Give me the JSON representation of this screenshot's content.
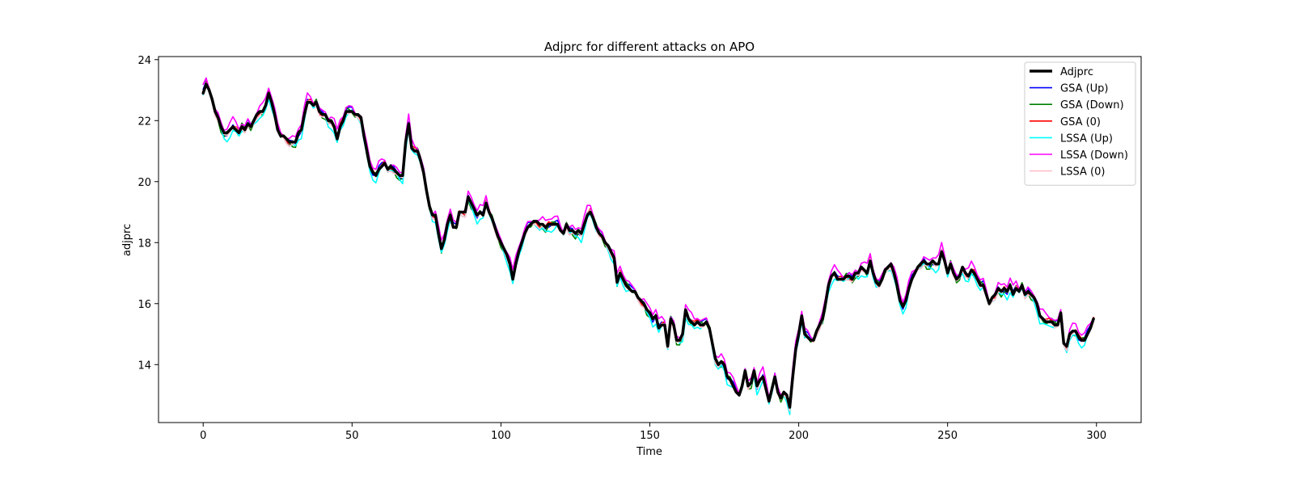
{
  "chart_data": {
    "type": "line",
    "title": "Adjprc for different attacks on APO",
    "xlabel": "Time",
    "ylabel": "adjprc",
    "xlim": [
      -15,
      315
    ],
    "ylim": [
      12.1,
      24.1
    ],
    "xticks": [
      0,
      50,
      100,
      150,
      200,
      250,
      300
    ],
    "yticks": [
      14,
      16,
      18,
      20,
      22,
      24
    ],
    "grid": false,
    "legend_position": "top-right",
    "anchors": [
      [
        0,
        22.9
      ],
      [
        1,
        23.2
      ],
      [
        2,
        23.0
      ],
      [
        3,
        22.7
      ],
      [
        4,
        22.3
      ],
      [
        5,
        22.1
      ],
      [
        6,
        21.8
      ],
      [
        7,
        21.6
      ],
      [
        8,
        21.6
      ],
      [
        9,
        21.7
      ],
      [
        10,
        21.8
      ],
      [
        11,
        21.7
      ],
      [
        12,
        21.6
      ],
      [
        13,
        21.8
      ],
      [
        14,
        21.7
      ],
      [
        15,
        21.9
      ],
      [
        16,
        21.8
      ],
      [
        17,
        22.0
      ],
      [
        18,
        22.2
      ],
      [
        19,
        22.3
      ],
      [
        20,
        22.3
      ],
      [
        21,
        22.5
      ],
      [
        22,
        22.9
      ],
      [
        23,
        22.6
      ],
      [
        24,
        22.2
      ],
      [
        25,
        21.7
      ],
      [
        26,
        21.5
      ],
      [
        27,
        21.5
      ],
      [
        28,
        21.4
      ],
      [
        29,
        21.3
      ],
      [
        30,
        21.3
      ],
      [
        31,
        21.3
      ],
      [
        32,
        21.6
      ],
      [
        33,
        21.7
      ],
      [
        34,
        22.2
      ],
      [
        35,
        22.6
      ],
      [
        36,
        22.6
      ],
      [
        37,
        22.5
      ],
      [
        38,
        22.6
      ],
      [
        39,
        22.3
      ],
      [
        40,
        22.2
      ],
      [
        41,
        22.2
      ],
      [
        42,
        22.0
      ],
      [
        43,
        22.0
      ],
      [
        44,
        21.8
      ],
      [
        45,
        21.4
      ],
      [
        46,
        21.8
      ],
      [
        47,
        22.0
      ],
      [
        48,
        22.3
      ],
      [
        49,
        22.3
      ],
      [
        50,
        22.3
      ],
      [
        51,
        22.2
      ],
      [
        52,
        22.2
      ],
      [
        53,
        22.1
      ],
      [
        54,
        21.5
      ],
      [
        55,
        21.0
      ],
      [
        56,
        20.5
      ],
      [
        57,
        20.3
      ],
      [
        58,
        20.2
      ],
      [
        59,
        20.4
      ],
      [
        60,
        20.5
      ],
      [
        61,
        20.6
      ],
      [
        62,
        20.4
      ],
      [
        63,
        20.5
      ],
      [
        64,
        20.4
      ],
      [
        65,
        20.3
      ],
      [
        66,
        20.2
      ],
      [
        67,
        20.2
      ],
      [
        68,
        21.3
      ],
      [
        69,
        21.9
      ],
      [
        70,
        21.1
      ],
      [
        71,
        21.0
      ],
      [
        72,
        21.0
      ],
      [
        73,
        20.7
      ],
      [
        74,
        20.3
      ],
      [
        75,
        19.7
      ],
      [
        76,
        19.2
      ],
      [
        77,
        18.9
      ],
      [
        78,
        18.9
      ],
      [
        79,
        18.3
      ],
      [
        80,
        17.8
      ],
      [
        81,
        18.1
      ],
      [
        82,
        18.6
      ],
      [
        83,
        18.9
      ],
      [
        84,
        18.5
      ],
      [
        85,
        18.5
      ],
      [
        86,
        19.0
      ],
      [
        87,
        19.0
      ],
      [
        88,
        19.0
      ],
      [
        89,
        19.5
      ],
      [
        90,
        19.3
      ],
      [
        91,
        19.1
      ],
      [
        92,
        18.9
      ],
      [
        93,
        19.0
      ],
      [
        94,
        18.9
      ],
      [
        95,
        19.3
      ],
      [
        96,
        19.0
      ],
      [
        97,
        18.8
      ],
      [
        98,
        18.5
      ],
      [
        99,
        18.2
      ],
      [
        100,
        18.0
      ],
      [
        101,
        17.8
      ],
      [
        102,
        17.6
      ],
      [
        103,
        17.3
      ],
      [
        104,
        16.8
      ],
      [
        105,
        17.3
      ],
      [
        106,
        17.7
      ],
      [
        107,
        18.0
      ],
      [
        108,
        18.3
      ],
      [
        109,
        18.5
      ],
      [
        110,
        18.6
      ],
      [
        111,
        18.7
      ],
      [
        112,
        18.7
      ],
      [
        113,
        18.6
      ],
      [
        114,
        18.6
      ],
      [
        115,
        18.5
      ],
      [
        116,
        18.6
      ],
      [
        117,
        18.6
      ],
      [
        118,
        18.6
      ],
      [
        119,
        18.6
      ],
      [
        120,
        18.4
      ],
      [
        121,
        18.3
      ],
      [
        122,
        18.6
      ],
      [
        123,
        18.4
      ],
      [
        124,
        18.4
      ],
      [
        125,
        18.3
      ],
      [
        126,
        18.4
      ],
      [
        127,
        18.3
      ],
      [
        128,
        18.6
      ],
      [
        129,
        18.9
      ],
      [
        130,
        19.0
      ],
      [
        131,
        18.8
      ],
      [
        132,
        18.5
      ],
      [
        133,
        18.3
      ],
      [
        134,
        18.2
      ],
      [
        135,
        18.0
      ],
      [
        136,
        17.9
      ],
      [
        137,
        17.7
      ],
      [
        138,
        17.5
      ],
      [
        139,
        16.7
      ],
      [
        140,
        17.0
      ],
      [
        141,
        16.8
      ],
      [
        142,
        16.6
      ],
      [
        143,
        16.5
      ],
      [
        144,
        16.4
      ],
      [
        145,
        16.4
      ],
      [
        146,
        16.2
      ],
      [
        147,
        16.1
      ],
      [
        148,
        16.0
      ],
      [
        149,
        15.8
      ],
      [
        150,
        15.7
      ],
      [
        151,
        15.5
      ],
      [
        152,
        15.6
      ],
      [
        153,
        15.2
      ],
      [
        154,
        15.3
      ],
      [
        155,
        15.3
      ],
      [
        156,
        14.6
      ],
      [
        157,
        15.5
      ],
      [
        158,
        15.3
      ],
      [
        159,
        14.8
      ],
      [
        160,
        14.8
      ],
      [
        161,
        15.0
      ],
      [
        162,
        15.8
      ],
      [
        163,
        15.5
      ],
      [
        164,
        15.4
      ],
      [
        165,
        15.3
      ],
      [
        166,
        15.4
      ],
      [
        167,
        15.3
      ],
      [
        168,
        15.3
      ],
      [
        169,
        15.4
      ],
      [
        170,
        15.2
      ],
      [
        171,
        14.7
      ],
      [
        172,
        14.2
      ],
      [
        173,
        14.0
      ],
      [
        174,
        14.1
      ],
      [
        175,
        14.0
      ],
      [
        176,
        13.6
      ],
      [
        177,
        13.5
      ],
      [
        178,
        13.3
      ],
      [
        179,
        13.1
      ],
      [
        180,
        13.0
      ],
      [
        181,
        13.3
      ],
      [
        182,
        13.8
      ],
      [
        183,
        13.3
      ],
      [
        184,
        13.4
      ],
      [
        185,
        13.8
      ],
      [
        186,
        13.3
      ],
      [
        187,
        13.5
      ],
      [
        188,
        13.6
      ],
      [
        189,
        13.2
      ],
      [
        190,
        12.8
      ],
      [
        191,
        13.2
      ],
      [
        192,
        13.6
      ],
      [
        193,
        13.1
      ],
      [
        194,
        12.9
      ],
      [
        195,
        13.1
      ],
      [
        196,
        13.0
      ],
      [
        197,
        12.6
      ],
      [
        198,
        13.6
      ],
      [
        199,
        14.5
      ],
      [
        200,
        15.0
      ],
      [
        201,
        15.6
      ],
      [
        202,
        15.0
      ],
      [
        203,
        14.9
      ],
      [
        204,
        14.8
      ],
      [
        205,
        14.8
      ],
      [
        206,
        15.1
      ],
      [
        207,
        15.3
      ],
      [
        208,
        15.5
      ],
      [
        209,
        16.0
      ],
      [
        210,
        16.6
      ],
      [
        211,
        16.9
      ],
      [
        212,
        17.0
      ],
      [
        213,
        16.8
      ],
      [
        214,
        16.8
      ],
      [
        215,
        16.8
      ],
      [
        216,
        16.9
      ],
      [
        217,
        16.9
      ],
      [
        218,
        16.8
      ],
      [
        219,
        17.0
      ],
      [
        220,
        17.0
      ],
      [
        221,
        17.2
      ],
      [
        222,
        17.1
      ],
      [
        223,
        17.0
      ],
      [
        224,
        17.4
      ],
      [
        225,
        17.0
      ],
      [
        226,
        16.7
      ],
      [
        227,
        16.6
      ],
      [
        228,
        16.8
      ],
      [
        229,
        17.1
      ],
      [
        230,
        17.2
      ],
      [
        231,
        17.3
      ],
      [
        232,
        17.0
      ],
      [
        233,
        16.6
      ],
      [
        234,
        16.1
      ],
      [
        235,
        15.9
      ],
      [
        236,
        16.1
      ],
      [
        237,
        16.5
      ],
      [
        238,
        16.8
      ],
      [
        239,
        17.0
      ],
      [
        240,
        17.2
      ],
      [
        241,
        17.3
      ],
      [
        242,
        17.4
      ],
      [
        243,
        17.3
      ],
      [
        244,
        17.3
      ],
      [
        245,
        17.4
      ],
      [
        246,
        17.3
      ],
      [
        247,
        17.3
      ],
      [
        248,
        17.7
      ],
      [
        249,
        17.4
      ],
      [
        250,
        17.0
      ],
      [
        251,
        17.3
      ],
      [
        252,
        17.0
      ],
      [
        253,
        16.8
      ],
      [
        254,
        16.9
      ],
      [
        255,
        17.2
      ],
      [
        256,
        17.0
      ],
      [
        257,
        16.9
      ],
      [
        258,
        17.1
      ],
      [
        259,
        17.0
      ],
      [
        260,
        16.8
      ],
      [
        261,
        16.6
      ],
      [
        262,
        16.6
      ],
      [
        263,
        16.3
      ],
      [
        264,
        16.0
      ],
      [
        265,
        16.2
      ],
      [
        266,
        16.3
      ],
      [
        267,
        16.5
      ],
      [
        268,
        16.4
      ],
      [
        269,
        16.5
      ],
      [
        270,
        16.4
      ],
      [
        271,
        16.6
      ],
      [
        272,
        16.3
      ],
      [
        273,
        16.5
      ],
      [
        274,
        16.4
      ],
      [
        275,
        16.6
      ],
      [
        276,
        16.3
      ],
      [
        277,
        16.4
      ],
      [
        278,
        16.3
      ],
      [
        279,
        16.2
      ],
      [
        280,
        16.0
      ],
      [
        281,
        15.6
      ],
      [
        282,
        15.5
      ],
      [
        283,
        15.4
      ],
      [
        284,
        15.4
      ],
      [
        285,
        15.4
      ],
      [
        286,
        15.3
      ],
      [
        287,
        15.3
      ],
      [
        288,
        15.7
      ],
      [
        289,
        14.7
      ],
      [
        290,
        14.6
      ],
      [
        291,
        15.0
      ],
      [
        292,
        15.1
      ],
      [
        293,
        15.1
      ],
      [
        294,
        14.9
      ],
      [
        295,
        14.8
      ],
      [
        296,
        14.8
      ],
      [
        297,
        15.0
      ],
      [
        298,
        15.2
      ],
      [
        299,
        15.5
      ]
    ],
    "series": [
      {
        "name": "Adjprc",
        "color": "#000000",
        "width": 3.5,
        "offset": 0,
        "amplitude": 0,
        "phase": 0
      },
      {
        "name": "GSA (Up)",
        "color": "#0000ff",
        "width": 1.6,
        "offset": 0.02,
        "amplitude": 0.14,
        "phase": 1.1
      },
      {
        "name": "GSA (Down)",
        "color": "#008000",
        "width": 1.6,
        "offset": -0.03,
        "amplitude": 0.16,
        "phase": 2.3
      },
      {
        "name": "GSA (0)",
        "color": "#ff0000",
        "width": 1.6,
        "offset": 0.0,
        "amplitude": 0.12,
        "phase": 3.7
      },
      {
        "name": "LSSA (Up)",
        "color": "#00ffff",
        "width": 1.6,
        "offset": -0.12,
        "amplitude": 0.18,
        "phase": 0.4
      },
      {
        "name": "LSSA (Down)",
        "color": "#ff00ff",
        "width": 1.6,
        "offset": 0.15,
        "amplitude": 0.18,
        "phase": 5.1
      },
      {
        "name": "LSSA (0)",
        "color": "#ffc0cb",
        "width": 1.6,
        "offset": -0.05,
        "amplitude": 0.12,
        "phase": 4.2
      }
    ]
  }
}
